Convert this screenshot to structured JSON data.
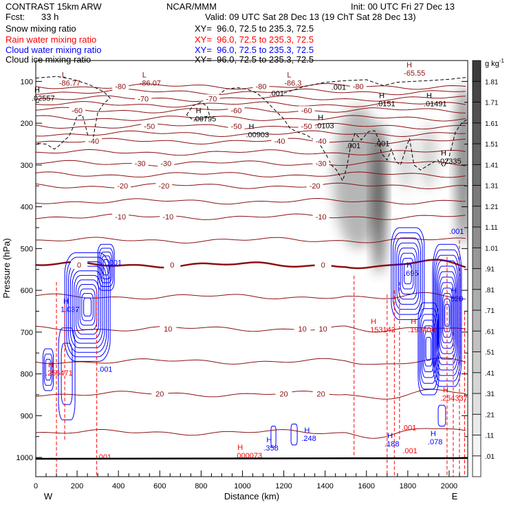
{
  "header": {
    "model": "CONTRAST 15km ARW",
    "center": "NCAR/MMM",
    "init": "Init: 00 UTC Fri 27 Dec 13",
    "fcst_label": "Fcst:",
    "fcst_value": "33 h",
    "valid": "Valid: 09 UTC Sat 28 Dec 13 (19 ChT Sat 28 Dec 13)"
  },
  "fields": [
    {
      "name": "Snow mixing ratio",
      "xy": "XY=  96.0, 72.5 to 235.3, 72.5",
      "color": "#000000"
    },
    {
      "name": "Rain water mixing ratio",
      "xy": "XY=  96.0, 72.5 to 235.3, 72.5",
      "color": "#ff0000"
    },
    {
      "name": "Cloud water mixing ratio",
      "xy": "XY=  96.0, 72.5 to 235.3, 72.5",
      "color": "#0000ff"
    },
    {
      "name": "Cloud ice mixing ratio",
      "xy": "XY=  96.0, 72.5 to 235.3, 72.5",
      "color": "#000000"
    }
  ],
  "chart_data": {
    "type": "cross-section",
    "xlabel": "Distance (km)",
    "ylabel": "Pressure (hPa)",
    "xlim": [
      0,
      2090
    ],
    "ylim": [
      1046,
      50
    ],
    "xticks": [
      0,
      200,
      400,
      600,
      800,
      1000,
      1200,
      1400,
      1600,
      1800,
      2000
    ],
    "yticks": [
      100,
      200,
      300,
      400,
      500,
      600,
      700,
      800,
      900,
      1000
    ],
    "x_end_labels": {
      "left": "W",
      "right": "E"
    },
    "colorbar": {
      "units": "g kg",
      "units_exp": "-1",
      "levels": [
        ".01",
        ".11",
        ".21",
        ".31",
        ".41",
        ".51",
        ".61",
        ".71",
        ".81",
        ".91",
        "1.01",
        "1.11",
        "1.21",
        "1.31",
        "1.41",
        "1.51",
        "1.61",
        "1.71",
        "1.81"
      ]
    },
    "isotherms": [
      {
        "t": -80,
        "p": 112,
        "labels": [
          410,
          1090,
          1560
        ]
      },
      {
        "t": -75,
        "p": 125
      },
      {
        "t": -70,
        "p": 141,
        "labels": [
          520,
          850
        ]
      },
      {
        "t": -65,
        "p": 155
      },
      {
        "t": -60,
        "p": 169,
        "labels": [
          200,
          970,
          1390
        ]
      },
      {
        "t": -55,
        "p": 188
      },
      {
        "t": -50,
        "p": 207,
        "labels": [
          550,
          1050,
          1330
        ]
      },
      {
        "t": -45,
        "p": 225
      },
      {
        "t": -40,
        "p": 243,
        "labels": [
          280,
          1120,
          1380
        ]
      },
      {
        "t": -35,
        "p": 270
      },
      {
        "t": -30,
        "p": 296,
        "labels": [
          505,
          630,
          1380
        ]
      },
      {
        "t": -25,
        "p": 323
      },
      {
        "t": -20,
        "p": 350,
        "labels": [
          420,
          620,
          1350
        ]
      },
      {
        "t": -15,
        "p": 387
      },
      {
        "t": -10,
        "p": 424,
        "labels": [
          410,
          640,
          1380
        ]
      },
      {
        "t": -5,
        "p": 480
      },
      {
        "t": 0,
        "p": 539,
        "labels": [
          210,
          660,
          1390
        ]
      },
      {
        "t": 5,
        "p": 615
      },
      {
        "t": 10,
        "p": 692,
        "labels": [
          640,
          1290,
          1390
        ]
      },
      {
        "t": 15,
        "p": 770
      },
      {
        "t": 20,
        "p": 848,
        "labels": [
          600,
          1200,
          1380
        ]
      },
      {
        "t": 25,
        "p": 940
      }
    ],
    "snow_plumes": [
      {
        "km": 1560,
        "p": 330,
        "wkm": 120,
        "hp": 170,
        "q": 0.6
      },
      {
        "km": 1660,
        "p": 380,
        "wkm": 30,
        "hp": 180,
        "q": 1.7
      },
      {
        "km": 1790,
        "p": 290,
        "wkm": 35,
        "hp": 70,
        "q": 0.3
      },
      {
        "km": 1900,
        "p": 280,
        "wkm": 40,
        "hp": 80,
        "q": 0.3
      },
      {
        "km": 2070,
        "p": 300,
        "wkm": 35,
        "hp": 190,
        "q": 1.3
      }
    ],
    "cloud_ice_contour": [
      [
        [
          0,
          92
        ],
        [
          100,
          88
        ],
        [
          180,
          95
        ],
        [
          260,
          108
        ],
        [
          330,
          125
        ],
        [
          360,
          140
        ],
        [
          330,
          152
        ],
        [
          300,
          175
        ],
        [
          285,
          215
        ],
        [
          275,
          245
        ],
        [
          255,
          236
        ],
        [
          240,
          205
        ],
        [
          225,
          180
        ],
        [
          200,
          183
        ],
        [
          182,
          208
        ],
        [
          160,
          232
        ],
        [
          140,
          240
        ],
        [
          110,
          255
        ],
        [
          90,
          262
        ],
        [
          50,
          250
        ],
        [
          0,
          248
        ]
      ],
      [
        [
          880,
          135
        ],
        [
          920,
          118
        ],
        [
          980,
          115
        ],
        [
          1030,
          120
        ],
        [
          1070,
          128
        ],
        [
          1110,
          145
        ],
        [
          1150,
          165
        ],
        [
          1200,
          190
        ],
        [
          1230,
          212
        ],
        [
          1270,
          222
        ],
        [
          1310,
          228
        ],
        [
          1345,
          240
        ],
        [
          1380,
          255
        ],
        [
          1410,
          280
        ],
        [
          1430,
          300
        ],
        [
          1455,
          312
        ],
        [
          1485,
          338
        ],
        [
          1505,
          305
        ],
        [
          1525,
          250
        ],
        [
          1545,
          224
        ],
        [
          1575,
          240
        ],
        [
          1610,
          220
        ],
        [
          1640,
          218
        ],
        [
          1660,
          240
        ],
        [
          1672,
          272
        ],
        [
          1700,
          288
        ],
        [
          1720,
          262
        ],
        [
          1742,
          292
        ],
        [
          1765,
          300
        ],
        [
          1790,
          262
        ],
        [
          1808,
          236
        ],
        [
          1830,
          300
        ],
        [
          1862,
          312
        ],
        [
          1900,
          300
        ],
        [
          1945,
          288
        ],
        [
          1975,
          305
        ],
        [
          2000,
          280
        ],
        [
          2030,
          222
        ],
        [
          2060,
          200
        ],
        [
          2090,
          190
        ]
      ],
      [
        [
          1200,
          128
        ],
        [
          1300,
          112
        ],
        [
          1400,
          102
        ],
        [
          1500,
          98
        ],
        [
          1600,
          96
        ],
        [
          1680,
          110
        ],
        [
          1750,
          102
        ],
        [
          1820,
          100
        ],
        [
          1900,
          98
        ],
        [
          2000,
          95
        ],
        [
          2090,
          90
        ]
      ],
      [
        [
          730,
          180
        ],
        [
          760,
          158
        ],
        [
          800,
          150
        ],
        [
          830,
          160
        ],
        [
          840,
          180
        ],
        [
          810,
          190
        ],
        [
          760,
          192
        ],
        [
          730,
          180
        ]
      ]
    ],
    "cloud_water_cells": [
      {
        "km": 250,
        "p": 640,
        "wkm": 110,
        "hp": 130,
        "n": 11
      },
      {
        "km": 340,
        "p": 545,
        "wkm": 40,
        "hp": 55,
        "n": 5
      },
      {
        "km": 60,
        "p": 790,
        "wkm": 25,
        "hp": 50,
        "n": 3
      },
      {
        "km": 150,
        "p": 800,
        "wkm": 40,
        "hp": 110,
        "n": 2
      },
      {
        "km": 1800,
        "p": 560,
        "wkm": 80,
        "hp": 110,
        "n": 8
      },
      {
        "km": 1990,
        "p": 660,
        "wkm": 70,
        "hp": 170,
        "n": 12
      },
      {
        "km": 1900,
        "p": 740,
        "wkm": 50,
        "hp": 110,
        "n": 7
      },
      {
        "km": 1965,
        "p": 900,
        "wkm": 18,
        "hp": 25,
        "n": 1
      },
      {
        "km": 1250,
        "p": 945,
        "wkm": 15,
        "hp": 25,
        "n": 1
      },
      {
        "km": 1150,
        "p": 950,
        "wkm": 12,
        "hp": 25,
        "n": 1
      }
    ],
    "rain_lines": [
      {
        "km": 100,
        "p1": 580,
        "p2": 1046
      },
      {
        "km": 140,
        "p1": 620,
        "p2": 960
      },
      {
        "km": 295,
        "p1": 600,
        "p2": 1046
      },
      {
        "km": 1540,
        "p1": 565,
        "p2": 1000
      },
      {
        "km": 1700,
        "p1": 610,
        "p2": 1046
      },
      {
        "km": 1735,
        "p1": 600,
        "p2": 1046
      },
      {
        "km": 1760,
        "p1": 580,
        "p2": 960
      },
      {
        "km": 1990,
        "p1": 520,
        "p2": 1046
      },
      {
        "km": 2020,
        "p1": 700,
        "p2": 1046
      },
      {
        "km": 2050,
        "p1": 480,
        "p2": 1046
      },
      {
        "km": 2075,
        "p1": 650,
        "p2": 1046
      }
    ],
    "extrema": [
      {
        "k": "L",
        "v": "-86.77",
        "km": 126,
        "p": 84,
        "c": "#8b1010"
      },
      {
        "k": "L",
        "v": "-86.07",
        "km": 515,
        "p": 84,
        "c": "#8b1010"
      },
      {
        "k": "L",
        "v": "-86.3",
        "km": 1216,
        "p": 84,
        "c": "#8b1010"
      },
      {
        "k": "H",
        "v": "-65.55",
        "km": 1794,
        "p": 60,
        "c": "#8b1010"
      },
      {
        "k": "H",
        "v": ".02557",
        "km": 93,
        "p": 120,
        "c": "#000000"
      },
      {
        "k": "H",
        "v": ".00795",
        "km": 774,
        "p": 169,
        "c": "#000000"
      },
      {
        "k": "H",
        "v": ".00903",
        "km": 1030,
        "p": 207,
        "c": "#000000"
      },
      {
        "k": "H",
        "v": ".0103",
        "km": 1365,
        "p": 186,
        "c": "#000000"
      },
      {
        "k": "H",
        "v": ".0151",
        "km": 1661,
        "p": 133,
        "c": "#000000"
      },
      {
        "k": "H",
        "v": ".01491",
        "km": 1890,
        "p": 133,
        "c": "#000000"
      },
      {
        "k": "H",
        "v": ".02335",
        "km": 1960,
        "p": 271,
        "c": "#000000"
      },
      {
        "k": "H",
        "v": "1.037",
        "km": 133,
        "p": 625,
        "c": "#0000ff"
      },
      {
        "k": "H",
        "v": ".695",
        "km": 1794,
        "p": 539,
        "c": "#0000ff"
      },
      {
        "k": "H",
        "v": ".820",
        "km": 2010,
        "p": 600,
        "c": "#0000ff"
      },
      {
        "k": "H",
        "v": ".358",
        "km": 1116,
        "p": 957,
        "c": "#0000ff"
      },
      {
        "k": "H",
        "v": ".248",
        "km": 1299,
        "p": 934,
        "c": "#0000ff"
      },
      {
        "k": "H",
        "v": ".188",
        "km": 1701,
        "p": 947,
        "c": "#0000ff"
      },
      {
        "k": "H",
        "v": ".078",
        "km": 1910,
        "p": 942,
        "c": "#0000ff"
      },
      {
        "k": "H",
        "v": ".153142",
        "km": 1621,
        "p": 674,
        "c": "#ff0000"
      },
      {
        "k": "H",
        "v": ".193404",
        "km": 1814,
        "p": 674,
        "c": "#ff0000"
      },
      {
        "k": "H",
        "v": ".256471",
        "km": 60,
        "p": 778,
        "c": "#ff0000"
      },
      {
        "k": "H",
        "v": ".254337",
        "km": 1970,
        "p": 838,
        "c": "#ff0000"
      },
      {
        "k": "H",
        "v": ".000073",
        "km": 1056,
        "p": 975,
        "c": "#ff0000"
      }
    ],
    "contour_labels": [
      {
        "v": ".001",
        "km": 1430,
        "p": 120,
        "c": "#000000"
      },
      {
        "v": ".001",
        "km": 1130,
        "p": 135,
        "c": "#000000"
      },
      {
        "v": ".001",
        "km": 1500,
        "p": 260,
        "c": "#000000"
      },
      {
        "v": ".001",
        "km": 1640,
        "p": 255,
        "c": "#000000"
      },
      {
        "v": ".001",
        "km": 345,
        "p": 540,
        "c": "#0000ff"
      },
      {
        "v": ".001",
        "km": 300,
        "p": 795,
        "c": "#0000ff"
      },
      {
        "v": ".001",
        "km": 2000,
        "p": 465,
        "c": "#0000ff"
      },
      {
        "v": ".001",
        "km": 1710,
        "p": 935,
        "c": "#ff0000"
      },
      {
        "v": ".001",
        "km": 1735,
        "p": 990,
        "c": "#ff0000"
      },
      {
        "v": ".001",
        "km": 295,
        "p": 1005,
        "c": "#ff0000"
      }
    ]
  }
}
